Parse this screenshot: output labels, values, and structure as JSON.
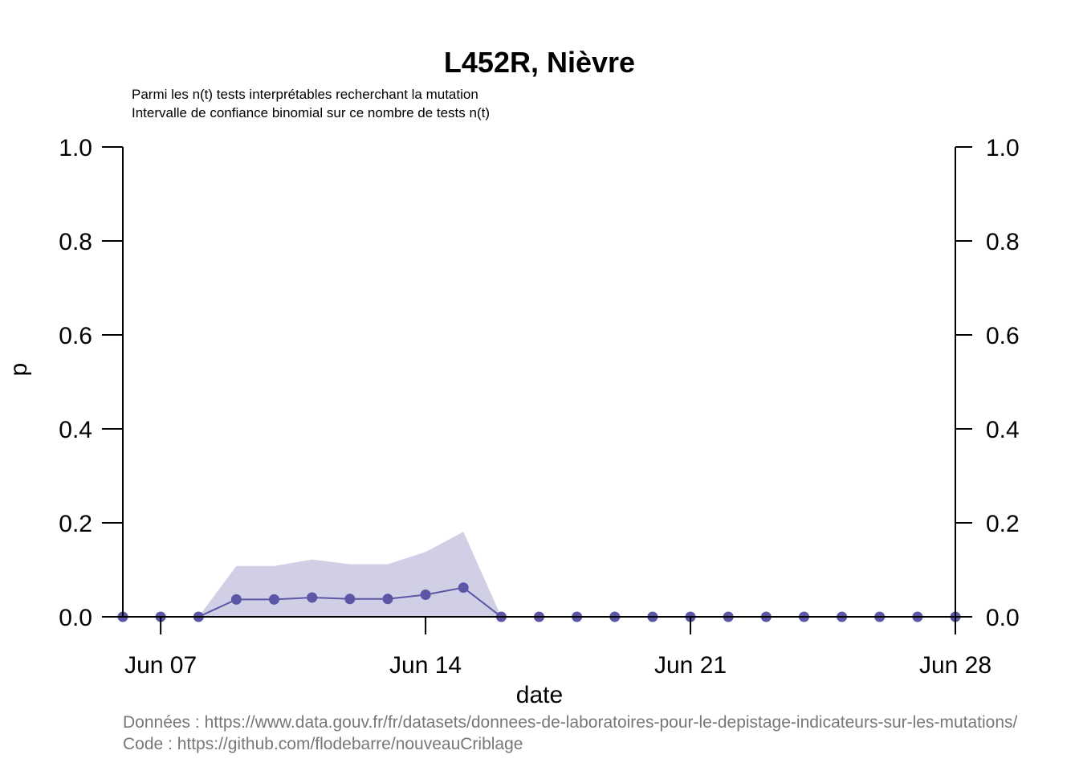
{
  "chart_data": {
    "type": "line",
    "title": "L452R, Nièvre",
    "subtitle_lines": [
      "Parmi les n(t) tests interprétables recherchant la mutation",
      "Intervalle de confiance binomial sur ce nombre de tests n(t)"
    ],
    "xlabel": "date",
    "ylabel": "p",
    "x_ticks": [
      "Jun 07",
      "Jun 14",
      "Jun 21",
      "Jun 28"
    ],
    "y_ticks": [
      "0.0",
      "0.2",
      "0.4",
      "0.6",
      "0.8",
      "1.0"
    ],
    "ylim": [
      0,
      1
    ],
    "xlim": [
      "2021-06-06",
      "2021-06-28"
    ],
    "series_color": "#5b57a6",
    "ci_color": "#d0cfe6",
    "x": [
      "2021-06-06",
      "2021-06-07",
      "2021-06-08",
      "2021-06-09",
      "2021-06-10",
      "2021-06-11",
      "2021-06-12",
      "2021-06-13",
      "2021-06-14",
      "2021-06-15",
      "2021-06-16",
      "2021-06-17",
      "2021-06-18",
      "2021-06-19",
      "2021-06-20",
      "2021-06-21",
      "2021-06-22",
      "2021-06-23",
      "2021-06-24",
      "2021-06-25",
      "2021-06-26",
      "2021-06-27",
      "2021-06-28"
    ],
    "values": [
      0,
      0,
      0,
      0.037,
      0.037,
      0.041,
      0.038,
      0.038,
      0.047,
      0.062,
      0,
      0,
      0,
      0,
      0,
      0,
      0,
      0,
      0,
      0,
      0,
      0,
      0
    ],
    "ci_upper": [
      0,
      0,
      0,
      0.108,
      0.108,
      0.122,
      0.112,
      0.112,
      0.138,
      0.181,
      0,
      0,
      0,
      0,
      0,
      0,
      0,
      0,
      0,
      0,
      0,
      0,
      0
    ],
    "ci_lower": [
      0,
      0,
      0,
      0,
      0,
      0,
      0,
      0,
      0,
      0,
      0,
      0,
      0,
      0,
      0,
      0,
      0,
      0,
      0,
      0,
      0,
      0,
      0
    ]
  },
  "footer": {
    "data_line": "Données : https://www.data.gouv.fr/fr/datasets/donnees-de-laboratoires-pour-le-depistage-indicateurs-sur-les-mutations/",
    "code_line": "Code : https://github.com/flodebarre/nouveauCriblage"
  }
}
